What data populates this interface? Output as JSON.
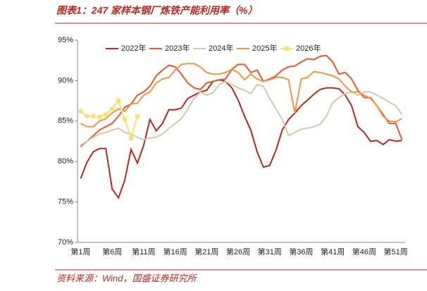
{
  "chart_data": {
    "type": "line",
    "title": "图表1：247 家样本钢厂炼铁产能利用率（%）",
    "source": "资料来源：Wind，国盛证券研究所",
    "categories": [
      "第1周",
      null,
      null,
      null,
      null,
      "第6周",
      null,
      null,
      null,
      null,
      "第11周",
      null,
      null,
      null,
      null,
      "第16周",
      null,
      null,
      null,
      null,
      "第21周",
      null,
      null,
      null,
      null,
      "第26周",
      null,
      null,
      null,
      null,
      "第31周",
      null,
      null,
      null,
      null,
      "第36周",
      null,
      null,
      null,
      null,
      "第41周",
      null,
      null,
      null,
      null,
      "第46周",
      null,
      null,
      null,
      null,
      "第51周",
      null
    ],
    "ylim": [
      70,
      95
    ],
    "yticks": [
      {
        "value": 70,
        "label": "70%"
      },
      {
        "value": 75,
        "label": "75%"
      },
      {
        "value": 80,
        "label": "80%"
      },
      {
        "value": 85,
        "label": "85%"
      },
      {
        "value": 90,
        "label": "90%"
      },
      {
        "value": 95,
        "label": "95%"
      }
    ],
    "grid": false,
    "legend": "top",
    "series": [
      {
        "name": "2022年",
        "color": "#b8281e",
        "values": [
          77.9,
          79.9,
          81.2,
          81.6,
          81.6,
          76.6,
          75.5,
          77.7,
          81.5,
          79.8,
          82.0,
          85.2,
          83.8,
          84.7,
          86.4,
          86.4,
          86.6,
          87.8,
          88.2,
          88.6,
          88.8,
          89.9,
          90.1,
          89.9,
          89.1,
          87.6,
          85.6,
          83.9,
          81.2,
          79.3,
          79.5,
          81.4,
          83.9,
          85.2,
          86.0,
          86.9,
          87.6,
          88.3,
          88.9,
          89.1,
          89.1,
          89.0,
          88.2,
          86.9,
          84.3,
          83.6,
          82.5,
          82.6,
          82.1,
          82.7,
          82.5,
          82.6
        ]
      },
      {
        "name": "2023年",
        "color": "#e8562a",
        "values": [
          81.9,
          82.5,
          83.2,
          83.9,
          84.3,
          84.7,
          85.6,
          86.7,
          87.1,
          88.2,
          88.6,
          89.3,
          90.6,
          91.3,
          91.9,
          91.7,
          90.8,
          89.7,
          89.1,
          88.9,
          89.7,
          89.9,
          90.1,
          90.2,
          91.4,
          92.0,
          92.0,
          91.0,
          91.3,
          89.9,
          90.2,
          90.6,
          91.3,
          91.7,
          91.8,
          92.3,
          92.7,
          92.6,
          93.0,
          93.1,
          92.3,
          90.8,
          91.0,
          90.2,
          88.8,
          87.9,
          87.9,
          86.9,
          85.8,
          84.7,
          84.7,
          82.7
        ]
      },
      {
        "name": "2024年",
        "color": "#d9c6ab",
        "values": [
          81.7,
          82.5,
          83.0,
          83.4,
          83.6,
          83.9,
          84.1,
          83.6,
          83.4,
          83.0,
          82.7,
          82.9,
          83.0,
          83.4,
          84.1,
          84.7,
          85.3,
          86.5,
          87.8,
          88.6,
          88.2,
          88.5,
          89.5,
          89.9,
          89.5,
          89.1,
          88.8,
          88.4,
          89.5,
          89.3,
          87.8,
          86.5,
          85.2,
          83.2,
          83.6,
          84.0,
          84.1,
          84.3,
          84.6,
          85.6,
          87.3,
          87.9,
          88.4,
          88.6,
          88.2,
          88.6,
          88.6,
          88.2,
          87.8,
          87.3,
          86.9,
          85.8
        ]
      },
      {
        "name": "2025年",
        "color": "#f29442",
        "values": [
          84.7,
          84.3,
          84.3,
          85.0,
          85.3,
          86.0,
          86.5,
          86.2,
          87.1,
          87.2,
          88.2,
          88.6,
          89.7,
          90.2,
          90.4,
          91.3,
          92.0,
          92.1,
          92.1,
          91.7,
          91.0,
          90.8,
          90.8,
          91.0,
          91.4,
          91.0,
          90.1,
          90.8,
          90.2,
          89.9,
          90.1,
          90.4,
          90.4,
          90.1,
          86.0,
          90.2,
          90.4,
          91.1,
          91.0,
          90.8,
          90.6,
          90.2,
          89.3,
          88.6,
          88.6,
          88.2,
          87.8,
          86.9,
          85.6,
          85.0,
          84.9,
          85.3
        ]
      },
      {
        "name": "2026年",
        "color": "#f6e271",
        "marker": "square",
        "values": [
          86.2,
          85.6,
          85.6,
          85.5,
          85.8,
          86.5,
          87.5,
          85.2,
          82.9,
          85.6,
          null,
          null,
          null,
          null,
          null,
          null,
          null,
          null,
          null,
          null,
          null,
          null,
          null,
          null,
          null,
          null,
          null,
          null,
          null,
          null,
          null,
          null,
          null,
          null,
          null,
          null,
          null,
          null,
          null,
          null,
          null,
          null,
          null,
          null,
          null,
          null,
          null,
          null,
          null,
          null,
          null,
          null
        ]
      }
    ]
  }
}
